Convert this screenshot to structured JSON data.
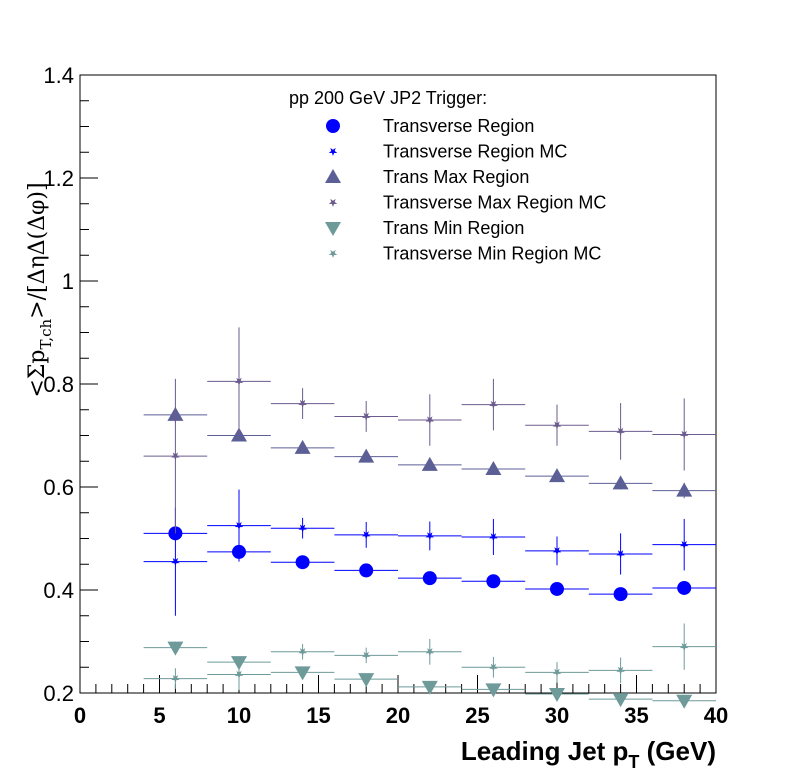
{
  "chart_data": {
    "type": "scatter",
    "title": "",
    "xlabel": "Leading Jet p",
    "xlabel_sub": "T",
    "xlabel_unit": " (GeV)",
    "ylabel_parts": [
      "<Σp",
      "T,ch",
      ">/[ΔηΔ(Δφ)]"
    ],
    "xlim": [
      0,
      40
    ],
    "ylim": [
      0.2,
      1.4
    ],
    "x_ticks": [
      "0",
      "5",
      "10",
      "15",
      "20",
      "25",
      "30",
      "35",
      "40"
    ],
    "y_ticks": [
      "0.2",
      "0.4",
      "0.6",
      "0.8",
      "1",
      "1.2",
      "1.4"
    ],
    "legend_title": "pp 200 GeV JP2 Trigger:",
    "legend_position": "top-center",
    "grid": false,
    "series": [
      {
        "name": "Transverse Region",
        "marker": "circle",
        "color": "#0000ff",
        "x": [
          6,
          10,
          14,
          18,
          22,
          26,
          30,
          34,
          38
        ],
        "xerr": [
          2,
          2,
          2,
          2,
          2,
          2,
          2,
          2,
          2
        ],
        "y": [
          0.51,
          0.474,
          0.454,
          0.438,
          0.423,
          0.417,
          0.402,
          0.392,
          0.404
        ],
        "yerr": [
          0.012,
          0.008,
          0.006,
          0.006,
          0.006,
          0.006,
          0.006,
          0.006,
          0.008
        ]
      },
      {
        "name": "Transverse Region MC",
        "marker": "star",
        "color": "#0000ff",
        "x": [
          6,
          10,
          14,
          18,
          22,
          26,
          30,
          34,
          38
        ],
        "xerr": [
          2,
          2,
          2,
          2,
          2,
          2,
          2,
          2,
          2
        ],
        "y": [
          0.455,
          0.525,
          0.52,
          0.507,
          0.505,
          0.503,
          0.476,
          0.47,
          0.488
        ],
        "yerr": [
          0.105,
          0.07,
          0.02,
          0.025,
          0.028,
          0.035,
          0.028,
          0.04,
          0.05
        ]
      },
      {
        "name": "Trans Max Region",
        "marker": "triangle-up",
        "color": "#5c5f96",
        "x": [
          6,
          10,
          14,
          18,
          22,
          26,
          30,
          34,
          38
        ],
        "xerr": [
          2,
          2,
          2,
          2,
          2,
          2,
          2,
          2,
          2
        ],
        "y": [
          0.74,
          0.7,
          0.676,
          0.659,
          0.643,
          0.635,
          0.621,
          0.607,
          0.593
        ],
        "yerr": [
          0.015,
          0.01,
          0.008,
          0.008,
          0.008,
          0.008,
          0.01,
          0.012,
          0.015
        ]
      },
      {
        "name": "Transverse Max Region MC",
        "marker": "star",
        "color": "#6b5b8e",
        "x": [
          6,
          10,
          14,
          18,
          22,
          26,
          30,
          34,
          38
        ],
        "xerr": [
          2,
          2,
          2,
          2,
          2,
          2,
          2,
          2,
          2
        ],
        "y": [
          0.66,
          0.805,
          0.762,
          0.737,
          0.73,
          0.76,
          0.72,
          0.708,
          0.702
        ],
        "yerr": [
          0.15,
          0.105,
          0.03,
          0.03,
          0.05,
          0.05,
          0.04,
          0.055,
          0.07
        ]
      },
      {
        "name": "Trans Min Region",
        "marker": "triangle-down",
        "color": "#6e9a9a",
        "x": [
          6,
          10,
          14,
          18,
          22,
          26,
          30,
          34,
          38
        ],
        "xerr": [
          2,
          2,
          2,
          2,
          2,
          2,
          2,
          2,
          2
        ],
        "y": [
          0.288,
          0.26,
          0.24,
          0.227,
          0.212,
          0.207,
          0.198,
          0.188,
          0.185
        ],
        "yerr": [
          0.012,
          0.008,
          0.006,
          0.006,
          0.006,
          0.006,
          0.006,
          0.006,
          0.008
        ]
      },
      {
        "name": "Transverse Min Region MC",
        "marker": "star",
        "color": "#6e9a9a",
        "x": [
          6,
          10,
          14,
          18,
          22,
          26,
          30,
          34,
          38
        ],
        "xerr": [
          2,
          2,
          2,
          2,
          2,
          2,
          2,
          2,
          2
        ],
        "y": [
          0.228,
          0.236,
          0.28,
          0.273,
          0.28,
          0.25,
          0.24,
          0.244,
          0.29
        ],
        "yerr": [
          0.02,
          0.03,
          0.015,
          0.015,
          0.025,
          0.02,
          0.02,
          0.025,
          0.045
        ]
      }
    ]
  }
}
